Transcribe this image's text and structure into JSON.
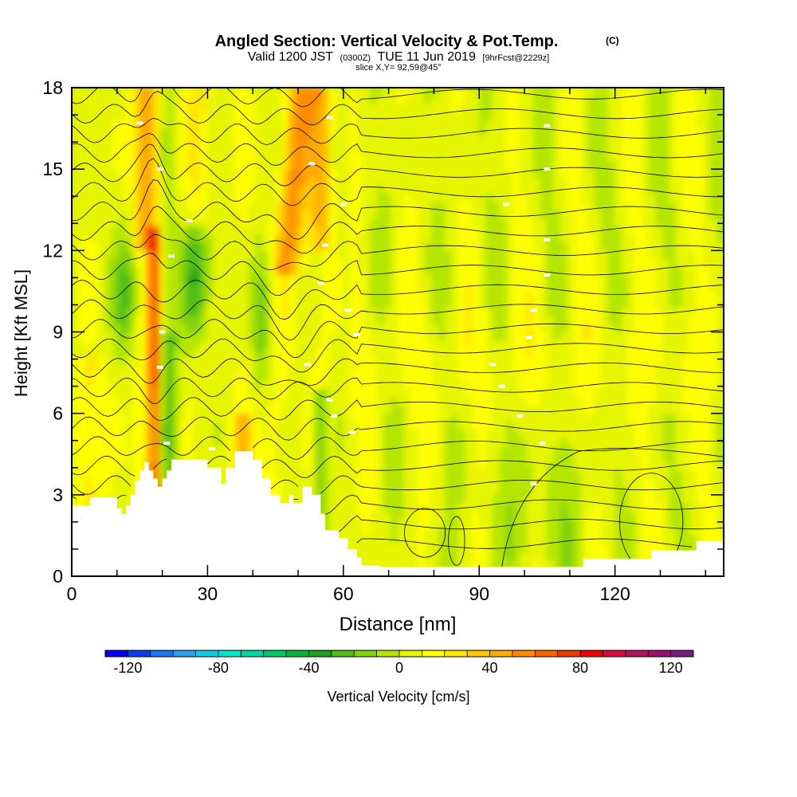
{
  "titles": {
    "main": "Angled Section: Vertical Velocity & Pot.Temp.",
    "copyright": "(C)",
    "valid_prefix": "Valid 1200 JST",
    "valid_utc": "(0300Z)",
    "valid_date": "TUE 11 Jun 2019",
    "forecast": "[9hrFcst@2229z]",
    "slice": "slice X,Y= 92,59@45°"
  },
  "chart_data": {
    "type": "heatmap",
    "xlabel": "Distance [nm]",
    "ylabel": "Height [Kft MSL]",
    "xlim": [
      0,
      144
    ],
    "ylim": [
      0,
      18
    ],
    "x_ticks": [
      0,
      30,
      60,
      90,
      120
    ],
    "y_ticks": [
      0,
      3,
      6,
      9,
      12,
      15,
      18
    ],
    "x_tick_labels": [
      "0",
      "30",
      "60",
      "90",
      "120"
    ],
    "y_tick_labels": [
      "0",
      "3",
      "6",
      "9",
      "12",
      "15",
      "18"
    ],
    "colorbar": {
      "label": "Vertical Velocity [cm/s]",
      "range": [
        -130,
        130
      ],
      "step": 10,
      "tick_values": [
        -120,
        -80,
        -40,
        0,
        40,
        80,
        120
      ],
      "tick_labels": [
        "-120",
        "-80",
        "-40",
        "0",
        "40",
        "80",
        "120"
      ],
      "colors": [
        "#0000f0",
        "#0a3cf0",
        "#1e78f0",
        "#28a0f0",
        "#14c8e6",
        "#00e6c8",
        "#00d7a0",
        "#00c864",
        "#0ab43c",
        "#1ea01e",
        "#50be14",
        "#82d20a",
        "#b4e600",
        "#e6f500",
        "#ffff00",
        "#ffe600",
        "#ffc800",
        "#ffaa00",
        "#ff8c00",
        "#ff6400",
        "#f03c00",
        "#f00000",
        "#dc0a3c",
        "#b4145a",
        "#96146e",
        "#781e82"
      ]
    },
    "terrain_kft": [
      [
        0,
        2.6
      ],
      [
        4,
        2.6
      ],
      [
        4,
        2.9
      ],
      [
        10,
        2.9
      ],
      [
        10,
        2.5
      ],
      [
        11,
        2.5
      ],
      [
        11,
        2.3
      ],
      [
        12,
        2.3
      ],
      [
        12,
        2.6
      ],
      [
        13,
        2.6
      ],
      [
        13,
        3.0
      ],
      [
        14,
        3.0
      ],
      [
        14,
        3.5
      ],
      [
        15,
        3.5
      ],
      [
        15,
        3.9
      ],
      [
        16,
        3.9
      ],
      [
        16,
        4.2
      ],
      [
        17,
        4.2
      ],
      [
        17,
        3.9
      ],
      [
        18,
        3.9
      ],
      [
        18,
        3.6
      ],
      [
        19,
        3.6
      ],
      [
        19,
        3.3
      ],
      [
        20,
        3.3
      ],
      [
        20,
        3.6
      ],
      [
        21,
        3.6
      ],
      [
        21,
        3.9
      ],
      [
        22,
        3.9
      ],
      [
        22,
        4.3
      ],
      [
        30,
        4.3
      ],
      [
        30,
        4.0
      ],
      [
        33,
        4.0
      ],
      [
        33,
        3.4
      ],
      [
        34,
        3.4
      ],
      [
        34,
        4.0
      ],
      [
        36,
        4.0
      ],
      [
        36,
        4.6
      ],
      [
        40,
        4.6
      ],
      [
        40,
        4.3
      ],
      [
        42,
        4.3
      ],
      [
        42,
        3.6
      ],
      [
        44,
        3.6
      ],
      [
        44,
        3.0
      ],
      [
        46,
        3.0
      ],
      [
        46,
        2.7
      ],
      [
        48,
        2.7
      ],
      [
        48,
        3.0
      ],
      [
        49,
        3.0
      ],
      [
        49,
        2.7
      ],
      [
        51,
        2.7
      ],
      [
        51,
        3.3
      ],
      [
        53,
        3.3
      ],
      [
        53,
        3.0
      ],
      [
        55,
        3.0
      ],
      [
        55,
        2.3
      ],
      [
        56,
        2.3
      ],
      [
        56,
        1.7
      ],
      [
        59,
        1.7
      ],
      [
        59,
        1.4
      ],
      [
        61,
        1.4
      ],
      [
        61,
        1.0
      ],
      [
        63,
        1.0
      ],
      [
        63,
        0.7
      ],
      [
        64,
        0.7
      ],
      [
        64,
        0.4
      ],
      [
        68,
        0.4
      ],
      [
        68,
        0.35
      ],
      [
        104,
        0.35
      ],
      [
        113,
        0.35
      ],
      [
        113,
        0.65
      ],
      [
        128,
        0.65
      ],
      [
        128,
        0.95
      ],
      [
        138,
        0.95
      ],
      [
        138,
        1.3
      ],
      [
        144,
        1.3
      ]
    ],
    "contour_label_points_kft": [
      [
        15,
        16.7
      ],
      [
        19.5,
        15.0
      ],
      [
        26,
        13.1
      ],
      [
        22,
        11.8
      ],
      [
        20,
        9.0
      ],
      [
        19.5,
        7.7
      ],
      [
        21,
        4.9
      ],
      [
        31,
        4.7
      ],
      [
        57,
        16.9
      ],
      [
        53,
        15.2
      ],
      [
        60,
        13.7
      ],
      [
        56,
        12.2
      ],
      [
        55,
        10.8
      ],
      [
        61,
        9.8
      ],
      [
        63,
        8.9
      ],
      [
        52,
        7.8
      ],
      [
        57,
        6.5
      ],
      [
        58,
        5.9
      ],
      [
        62,
        5.3
      ],
      [
        105,
        16.6
      ],
      [
        105,
        15.0
      ],
      [
        96,
        13.7
      ],
      [
        105,
        12.4
      ],
      [
        105,
        11.1
      ],
      [
        102,
        9.8
      ],
      [
        101,
        8.8
      ],
      [
        93,
        7.8
      ],
      [
        95,
        7.0
      ],
      [
        99,
        5.9
      ],
      [
        104,
        4.9
      ],
      [
        102,
        3.4
      ]
    ]
  }
}
